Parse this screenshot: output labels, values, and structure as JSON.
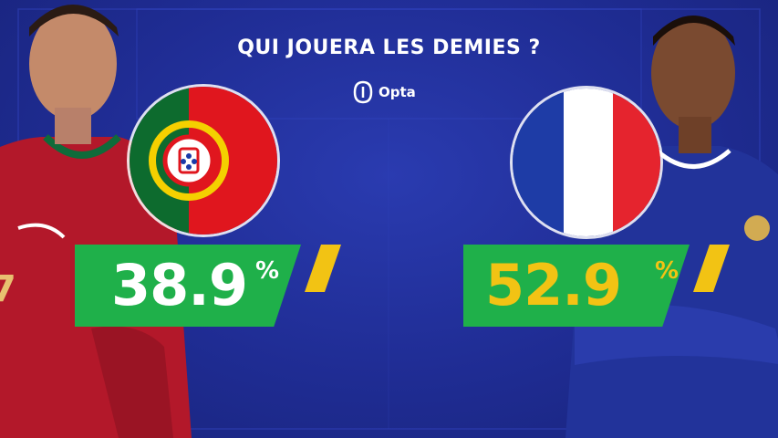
{
  "header": {
    "title": "QUI JOUERA LES DEMIES ?",
    "source_label": "Opta",
    "source_icon": "opta-logo-icon"
  },
  "teams": [
    {
      "name": "Portugal",
      "flag_icon": "portugal-flag-icon",
      "probability": "38.9",
      "percent_sign": "%",
      "value_color": "#ffffff"
    },
    {
      "name": "France",
      "flag_icon": "france-flag-icon",
      "probability": "52.9",
      "percent_sign": "%",
      "value_color": "#f2c314"
    }
  ],
  "colors": {
    "background": "#1f2c93",
    "badge_green": "#1fb04a",
    "badge_yellow": "#f2c314"
  }
}
